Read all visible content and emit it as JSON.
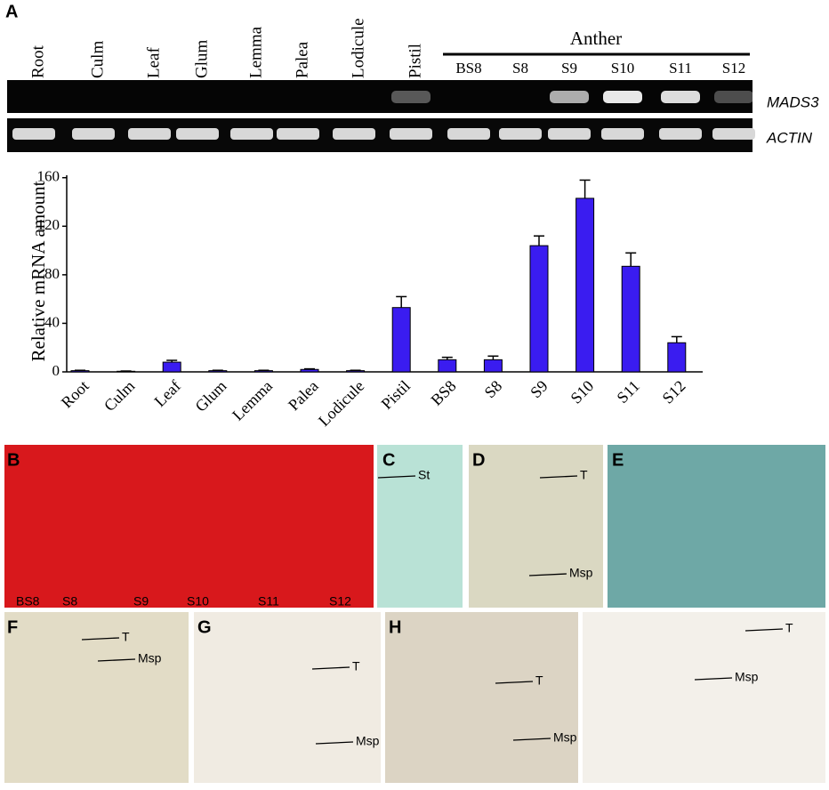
{
  "figure": {
    "panel_a": {
      "label": "A",
      "lanes": [
        "Root",
        "Culm",
        "Leaf",
        "Glum",
        "Lemma",
        "Palea",
        "Lodicule",
        "Pistil",
        "BS8",
        "S8",
        "S9",
        "S10",
        "S11",
        "S12"
      ],
      "group": "Anther",
      "genes": [
        "MADS3",
        "ACTIN"
      ]
    },
    "panels": [
      {
        "label": "B",
        "annotations": [
          "BS8",
          "S8",
          "S9",
          "S10",
          "S11",
          "S12"
        ]
      },
      {
        "label": "C",
        "annotations": [
          "St"
        ]
      },
      {
        "label": "D",
        "annotations": [
          "T",
          "Msp"
        ]
      },
      {
        "label": "E",
        "annotations": []
      },
      {
        "label": "F",
        "annotations": [
          "T",
          "Msp"
        ]
      },
      {
        "label": "G",
        "annotations": [
          "T",
          "Msp"
        ]
      },
      {
        "label": "H",
        "annotations": [
          "T",
          "Msp"
        ]
      },
      {
        "label": "",
        "annotations": [
          "T",
          "Msp"
        ]
      }
    ]
  },
  "chart_data": {
    "type": "bar",
    "y_label": "Relative mRNA amount",
    "categories": [
      "Root",
      "Culm",
      "Leaf",
      "Glum",
      "Lemma",
      "Palea",
      "Lodicule",
      "Pistil",
      "BS8",
      "S8",
      "S9",
      "S10",
      "S11",
      "S12"
    ],
    "values": [
      1,
      0.5,
      8,
      1,
      1,
      2,
      1,
      53,
      10,
      10,
      104,
      143,
      87,
      24
    ],
    "errors": [
      0.3,
      0.2,
      1.5,
      0.3,
      0.3,
      0.5,
      0.3,
      9,
      2,
      3,
      8,
      15,
      11,
      5
    ],
    "color": "#3a1cf0",
    "ylim": [
      0,
      162
    ],
    "yticks": [
      0,
      40,
      80,
      120,
      160
    ]
  }
}
